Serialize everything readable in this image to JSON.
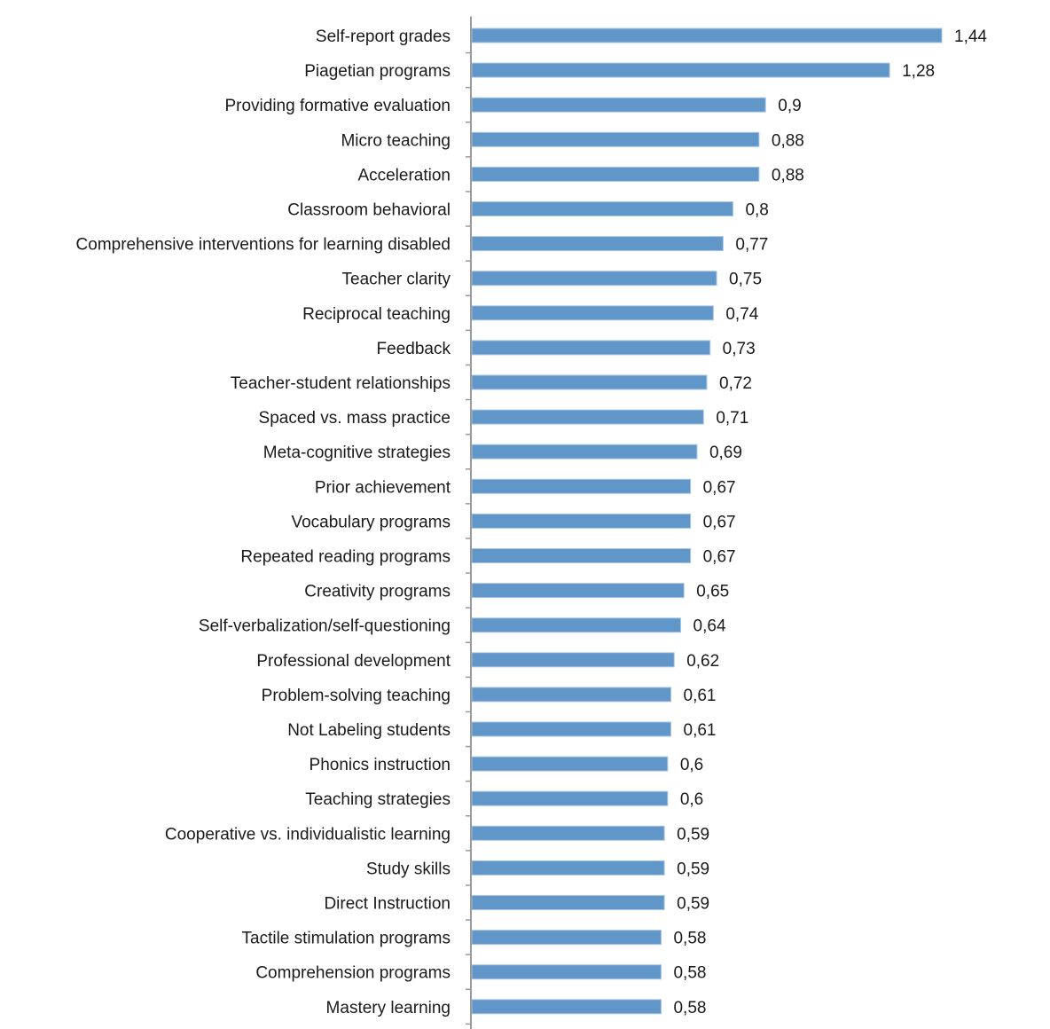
{
  "chart_data": {
    "type": "bar",
    "orientation": "horizontal",
    "title": "",
    "xlabel": "",
    "ylabel": "",
    "xlim": [
      0,
      1.44
    ],
    "grid": false,
    "legend": "none",
    "bar_color": "#6196c8",
    "axis_color": "#9a9a9a",
    "decimal_separator": ",",
    "categories": [
      "Self-report grades",
      "Piagetian programs",
      "Providing formative evaluation",
      "Micro teaching",
      "Acceleration",
      "Classroom behavioral",
      "Comprehensive interventions for learning disabled",
      "Teacher clarity",
      "Reciprocal teaching",
      "Feedback",
      "Teacher-student relationships",
      "Spaced vs. mass practice",
      "Meta-cognitive strategies",
      "Prior achievement",
      "Vocabulary programs",
      "Repeated reading programs",
      "Creativity programs",
      "Self-verbalization/self-questioning",
      "Professional development",
      "Problem-solving teaching",
      "Not Labeling students",
      "Phonics instruction",
      "Teaching strategies",
      "Cooperative vs. individualistic learning",
      "Study skills",
      "Direct Instruction",
      "Tactile stimulation programs",
      "Comprehension programs",
      "Mastery learning"
    ],
    "values": [
      1.44,
      1.28,
      0.9,
      0.88,
      0.88,
      0.8,
      0.77,
      0.75,
      0.74,
      0.73,
      0.72,
      0.71,
      0.69,
      0.67,
      0.67,
      0.67,
      0.65,
      0.64,
      0.62,
      0.61,
      0.61,
      0.6,
      0.6,
      0.59,
      0.59,
      0.59,
      0.58,
      0.58,
      0.58
    ],
    "data_labels": [
      "1,44",
      "1,28",
      "0,9",
      "0,88",
      "0,88",
      "0,8",
      "0,77",
      "0,75",
      "0,74",
      "0,73",
      "0,72",
      "0,71",
      "0,69",
      "0,67",
      "0,67",
      "0,67",
      "0,65",
      "0,64",
      "0,62",
      "0,61",
      "0,61",
      "0,6",
      "0,6",
      "0,59",
      "0,59",
      "0,59",
      "0,58",
      "0,58",
      "0,58"
    ]
  }
}
